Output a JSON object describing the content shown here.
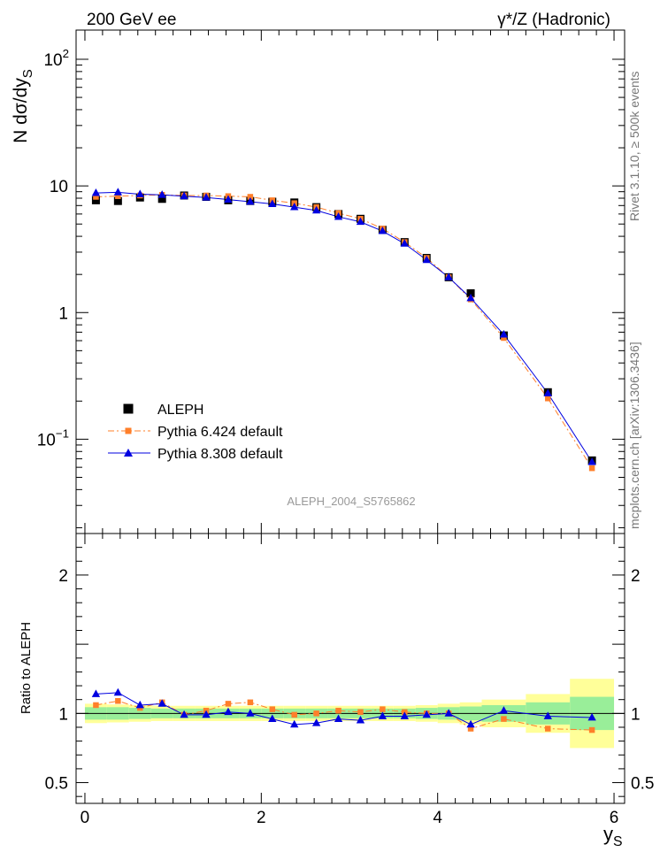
{
  "chart_data": {
    "type": "scatter",
    "header_left": "200 GeV ee",
    "header_right": "γ*/Z (Hadronic)",
    "side_label_top": "Rivet 3.1.10, ≥ 500k events",
    "side_label_bottom": "mcplots.cern.ch [arXiv:1306.3436]",
    "watermark": "ALEPH_2004_S5765862",
    "main": {
      "ylabel": "N dσ/dy_S",
      "yscale": "log",
      "ylim": [
        0.018,
        170
      ],
      "ytick_labels": [
        "10^-1",
        "1",
        "10",
        "10^2"
      ]
    },
    "ratio": {
      "ylabel": "Ratio to ALEPH",
      "ylim": [
        0.35,
        2.3
      ],
      "ytick_labels": [
        "0.5",
        "1",
        "2"
      ]
    },
    "xlabel": "y_S",
    "xlim": [
      -0.1,
      6.12
    ],
    "xtick_labels": [
      "0",
      "2",
      "4",
      "6"
    ],
    "legend": {
      "placement": "lower-left",
      "entries": [
        "ALEPH",
        "Pythia 6.424 default",
        "Pythia 8.308 default"
      ]
    },
    "x": [
      0.125,
      0.375,
      0.625,
      0.875,
      1.125,
      1.375,
      1.625,
      1.875,
      2.125,
      2.375,
      2.625,
      2.875,
      3.125,
      3.375,
      3.625,
      3.875,
      4.125,
      4.375,
      4.75,
      5.25,
      5.75
    ],
    "bin_edges": [
      0,
      0.25,
      0.5,
      0.75,
      1.0,
      1.25,
      1.5,
      1.75,
      2.0,
      2.25,
      2.5,
      2.75,
      3.0,
      3.25,
      3.5,
      3.75,
      4.0,
      4.25,
      4.5,
      5.0,
      5.5,
      6.0
    ],
    "band_inner": [
      0.045,
      0.045,
      0.04,
      0.035,
      0.035,
      0.035,
      0.035,
      0.035,
      0.035,
      0.035,
      0.035,
      0.035,
      0.035,
      0.035,
      0.035,
      0.04,
      0.045,
      0.05,
      0.06,
      0.08,
      0.12
    ],
    "band_outer": [
      0.07,
      0.065,
      0.06,
      0.055,
      0.055,
      0.055,
      0.055,
      0.055,
      0.055,
      0.055,
      0.055,
      0.055,
      0.055,
      0.055,
      0.055,
      0.06,
      0.07,
      0.08,
      0.1,
      0.14,
      0.25
    ],
    "series": [
      {
        "name": "ALEPH",
        "color": "#000000",
        "marker": "square",
        "values": [
          7.7,
          7.6,
          8.1,
          7.9,
          8.4,
          8.2,
          7.7,
          7.6,
          7.5,
          7.4,
          6.8,
          6.0,
          5.5,
          4.5,
          3.6,
          2.7,
          1.9,
          1.42,
          0.66,
          0.235,
          0.068
        ]
      },
      {
        "name": "Pythia 6.424 default",
        "color": "#ff7f2a",
        "marker": "square",
        "line": "dashdot",
        "values": [
          8.2,
          8.3,
          8.4,
          8.5,
          8.4,
          8.4,
          8.3,
          8.2,
          7.7,
          7.3,
          6.8,
          6.1,
          5.5,
          4.6,
          3.6,
          2.7,
          1.9,
          1.27,
          0.63,
          0.21,
          0.059
        ],
        "ratio": [
          1.06,
          1.09,
          1.04,
          1.08,
          0.99,
          1.02,
          1.07,
          1.08,
          1.03,
          0.99,
          1.0,
          1.02,
          1.01,
          1.03,
          1.01,
          1.0,
          1.0,
          0.89,
          0.96,
          0.89,
          0.88
        ]
      },
      {
        "name": "Pythia 8.308 default",
        "color": "#0000e0",
        "marker": "triangle",
        "line": "solid",
        "values": [
          8.8,
          8.9,
          8.6,
          8.5,
          8.3,
          8.1,
          7.8,
          7.5,
          7.2,
          6.8,
          6.4,
          5.7,
          5.2,
          4.4,
          3.5,
          2.6,
          1.9,
          1.3,
          0.67,
          0.23,
          0.066
        ],
        "ratio": [
          1.14,
          1.15,
          1.06,
          1.07,
          0.99,
          0.99,
          1.01,
          1.0,
          0.96,
          0.92,
          0.93,
          0.96,
          0.95,
          0.98,
          0.98,
          0.99,
          1.0,
          0.92,
          1.02,
          0.98,
          0.97
        ]
      }
    ]
  }
}
